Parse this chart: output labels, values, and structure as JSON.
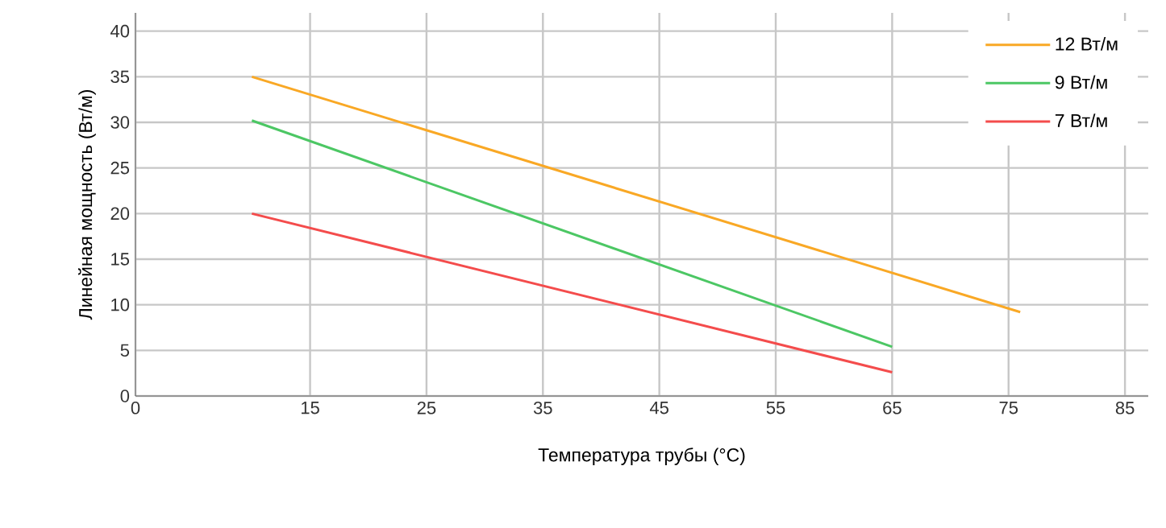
{
  "chart_data": {
    "type": "line",
    "xlabel": "Температура трубы (°C)",
    "ylabel": "Линейная мощность (Вт/м)",
    "xlim": [
      0,
      87
    ],
    "ylim": [
      0,
      42
    ],
    "xticks": [
      0,
      15,
      25,
      35,
      45,
      55,
      65,
      75,
      85
    ],
    "yticks": [
      0,
      5,
      10,
      15,
      20,
      25,
      30,
      35,
      40
    ],
    "grid": true,
    "legend": "top right",
    "marker": "none",
    "line_style": "solid",
    "series": [
      {
        "name": "12 Вт/м",
        "color": "#f9a825",
        "x": [
          10,
          76
        ],
        "values": [
          35,
          9.2
        ]
      },
      {
        "name": "9 Вт/м",
        "color": "#4cc764",
        "x": [
          10,
          65
        ],
        "values": [
          30.2,
          5.4
        ]
      },
      {
        "name": "7 Вт/м",
        "color": "#f44c4c",
        "x": [
          10,
          65
        ],
        "values": [
          20,
          2.6
        ]
      }
    ]
  }
}
